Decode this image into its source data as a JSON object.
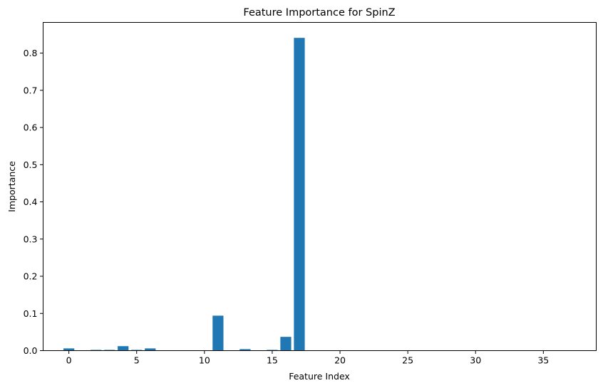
{
  "chart_data": {
    "type": "bar",
    "title": "Feature Importance for SpinZ",
    "xlabel": "Feature Index",
    "ylabel": "Importance",
    "xlim": [
      -1.9,
      38.9
    ],
    "ylim": [
      0,
      0.8825
    ],
    "xticks": [
      "0",
      "5",
      "10",
      "15",
      "20",
      "25",
      "30",
      "35"
    ],
    "yticks": [
      "0.0",
      "0.1",
      "0.2",
      "0.3",
      "0.4",
      "0.5",
      "0.6",
      "0.7",
      "0.8"
    ],
    "grid": false,
    "color": "#1f77b4",
    "x": [
      0,
      1,
      2,
      3,
      4,
      5,
      6,
      7,
      8,
      9,
      10,
      11,
      12,
      13,
      14,
      15,
      16,
      17,
      18,
      19,
      20,
      21,
      22,
      23,
      24,
      25,
      26,
      27,
      28,
      29,
      30,
      31,
      32,
      33,
      34,
      35,
      36,
      37
    ],
    "values": [
      0.006,
      0.0,
      0.002,
      0.002,
      0.012,
      0.002,
      0.006,
      0.0,
      0.0,
      0.0,
      0.0,
      0.094,
      0.0,
      0.004,
      0.0,
      0.002,
      0.037,
      0.841,
      0.0,
      0.0,
      0.0,
      0.0,
      0.0,
      0.0,
      0.0,
      0.0,
      0.0,
      0.0,
      0.0,
      0.0,
      0.0,
      0.0,
      0.0,
      0.0,
      0.0,
      0.0,
      0.0,
      0.0
    ]
  }
}
